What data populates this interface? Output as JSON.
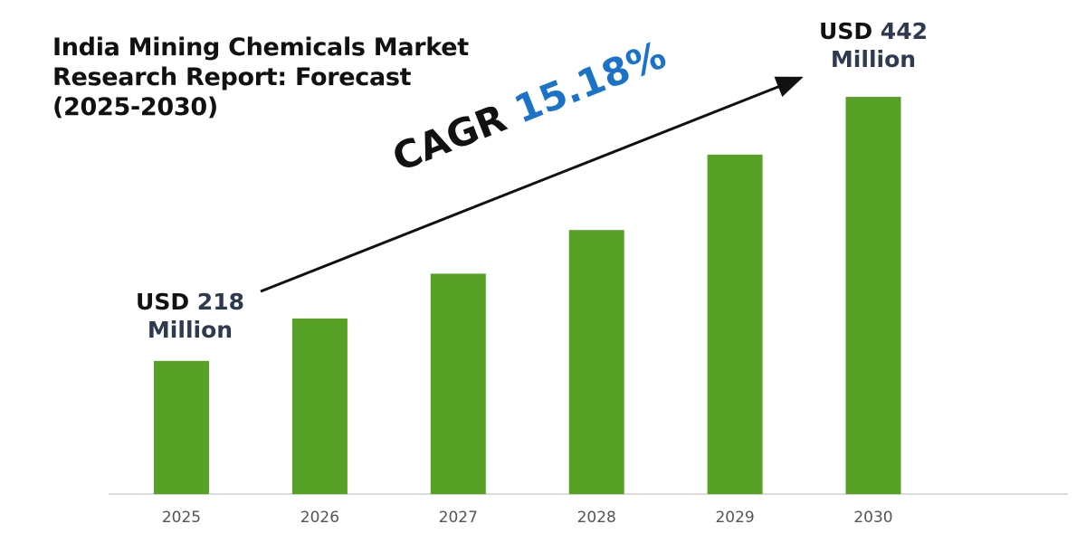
{
  "chart_data": {
    "type": "bar",
    "title": "India Mining Chemicals Market Research Report: Forecast (2025-2030)",
    "categories": [
      "2025",
      "2026",
      "2027",
      "2028",
      "2029",
      "2030"
    ],
    "values": [
      218,
      254,
      292,
      329,
      393,
      442
    ],
    "unit": "USD Million",
    "xlabel": "",
    "ylabel": "",
    "ylim": [
      105,
      450
    ],
    "grid": false,
    "bar_color": "#57a127",
    "annotations": {
      "start": {
        "prefix": "USD",
        "value": "218",
        "unit": "Million"
      },
      "end": {
        "prefix": "USD",
        "value": "442",
        "unit": "Million"
      },
      "cagr": {
        "label": "CAGR",
        "value": "15.18%",
        "color": "#1a73c8"
      }
    }
  }
}
